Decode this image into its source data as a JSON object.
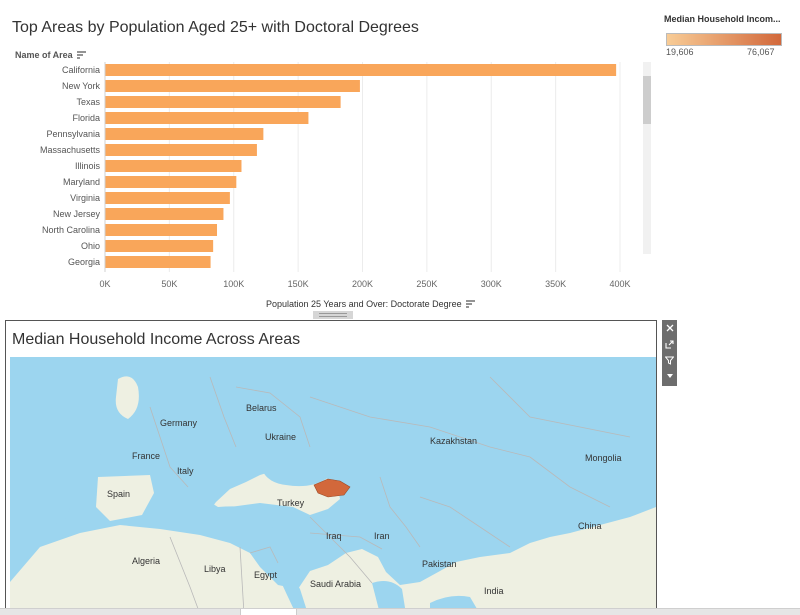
{
  "bar_chart": {
    "title": "Top Areas by Population Aged 25+ with Doctoral Degrees",
    "row_header": "Name of Area",
    "axis_title": "Population 25 Years and Over: Doctorate Degree",
    "bar_color": "#f9a65a"
  },
  "legend": {
    "title": "Median Household Incom...",
    "min_label": "19,606",
    "max_label": "76,067",
    "color_low": "#f8cc96",
    "color_high": "#d2683b"
  },
  "map": {
    "title": "Median Household Income Across Areas",
    "water_color": "#9cd5ef",
    "land_color": "#eef0e2",
    "highlight_color": "#d2683b",
    "labels": [
      {
        "name": "Belarus"
      },
      {
        "name": "Germany"
      },
      {
        "name": "Ukraine"
      },
      {
        "name": "Kazakhstan"
      },
      {
        "name": "France"
      },
      {
        "name": "Italy"
      },
      {
        "name": "Mongolia"
      },
      {
        "name": "Spain"
      },
      {
        "name": "Turkey"
      },
      {
        "name": "Iraq"
      },
      {
        "name": "Iran"
      },
      {
        "name": "China"
      },
      {
        "name": "Algeria"
      },
      {
        "name": "Libya"
      },
      {
        "name": "Egypt"
      },
      {
        "name": "Saudi Arabia"
      },
      {
        "name": "Pakistan"
      },
      {
        "name": "India"
      }
    ]
  },
  "controls": [
    "close-icon",
    "popout-icon",
    "filter-icon",
    "more-icon"
  ],
  "chart_data": {
    "type": "bar",
    "orientation": "horizontal",
    "title": "Top Areas by Population Aged 25+ with Doctoral Degrees",
    "xlabel": "Population 25 Years and Over: Doctorate Degree",
    "ylabel": "Name of Area",
    "categories": [
      "California",
      "New York",
      "Texas",
      "Florida",
      "Pennsylvania",
      "Massachusetts",
      "Illinois",
      "Maryland",
      "Virginia",
      "New Jersey",
      "North Carolina",
      "Ohio",
      "Georgia"
    ],
    "values": [
      397000,
      198000,
      183000,
      158000,
      123000,
      118000,
      106000,
      102000,
      97000,
      92000,
      87000,
      84000,
      82000
    ],
    "xlim": [
      0,
      400000
    ],
    "xticks": [
      0,
      50000,
      100000,
      150000,
      200000,
      250000,
      300000,
      350000,
      400000
    ],
    "xtick_labels": [
      "0K",
      "50K",
      "100K",
      "150K",
      "200K",
      "250K",
      "300K",
      "350K",
      "400K"
    ]
  }
}
